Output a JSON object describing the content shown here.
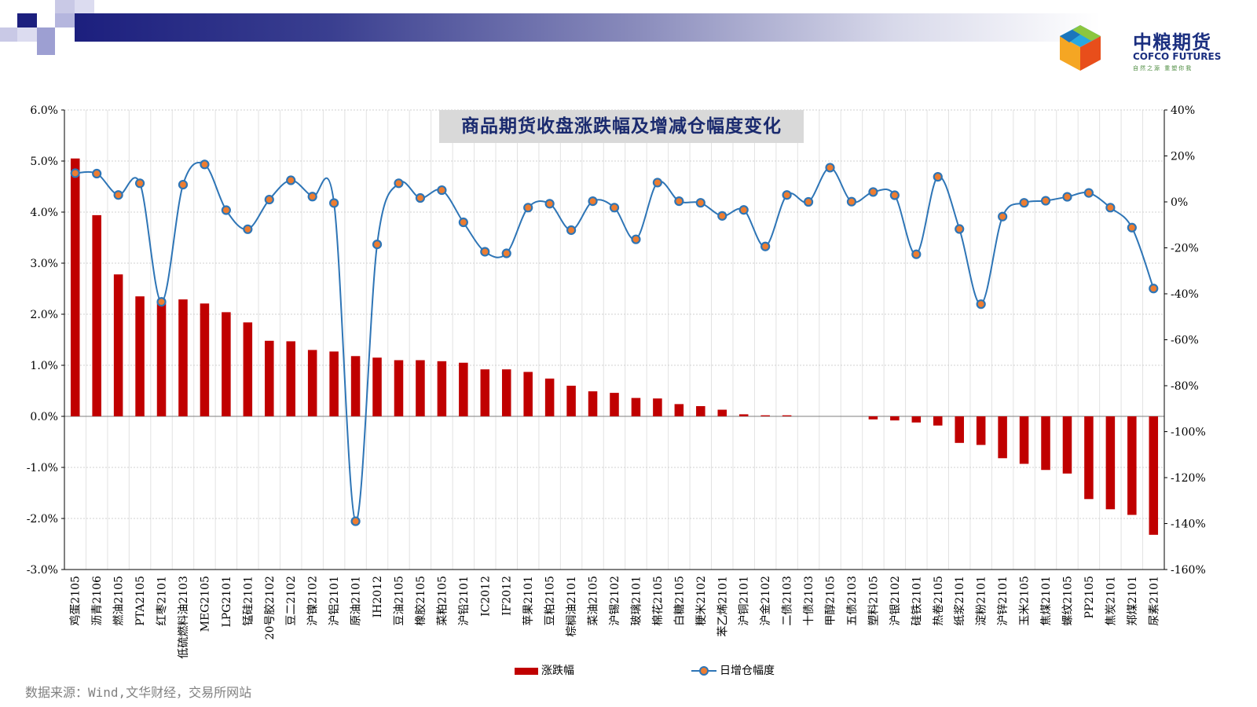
{
  "logo": {
    "name_cn": "中粮期货",
    "name_en": "COFCO FUTURES",
    "slogan": "自然之源 重塑你我"
  },
  "chart_title": "商品期货收盘涨跌幅及增减仓幅度变化",
  "source_text": "数据来源：Wind,文华财经，交易所网站",
  "colors": {
    "bar": "#c00000",
    "line": "#2e75b6",
    "marker_fill": "#ed7d31",
    "marker_edge": "#2e75b6",
    "header_dark": "#1c1f7e"
  },
  "chart_data": {
    "type": "bar",
    "categories": [
      "鸡蛋2105",
      "沥青2106",
      "燃油2105",
      "PTA2105",
      "红枣2101",
      "低硫燃料油2103",
      "MEG2105",
      "LPG2101",
      "锰硅2101",
      "20号胶2102",
      "豆二2102",
      "沪镍2102",
      "沪铝2101",
      "原油2101",
      "IH2012",
      "豆油2105",
      "橡胶2105",
      "菜粕2105",
      "沪铅2101",
      "IC2012",
      "IF2012",
      "苹果2101",
      "豆粕2105",
      "棕榈油2101",
      "菜油2105",
      "沪锡2102",
      "玻璃2101",
      "棉花2105",
      "白糖2105",
      "粳米2102",
      "苯乙烯2101",
      "沪铜2101",
      "沪金2102",
      "二债2103",
      "十债2103",
      "甲醇2105",
      "五债2103",
      "塑料2105",
      "沪银2102",
      "硅铁2101",
      "热卷2105",
      "纸浆2101",
      "淀粉2101",
      "沪锌2101",
      "玉米2105",
      "焦煤2101",
      "螺纹2105",
      "PP2105",
      "焦炭2101",
      "郑煤2101",
      "尿素2101"
    ],
    "series": [
      {
        "name": "涨跌幅",
        "type": "bar",
        "axis": "left",
        "values": [
          5.05,
          3.94,
          2.78,
          2.35,
          2.22,
          2.29,
          2.21,
          2.04,
          1.84,
          1.48,
          1.47,
          1.3,
          1.27,
          1.18,
          1.15,
          1.1,
          1.1,
          1.08,
          1.05,
          0.92,
          0.92,
          0.87,
          0.74,
          0.6,
          0.49,
          0.46,
          0.36,
          0.35,
          0.24,
          0.2,
          0.13,
          0.04,
          0.02,
          0.02,
          0.0,
          0.0,
          0.0,
          -0.06,
          -0.08,
          -0.12,
          -0.18,
          -0.52,
          -0.56,
          -0.82,
          -0.93,
          -1.05,
          -1.12,
          -1.62,
          -1.82,
          -1.93,
          -2.32
        ]
      },
      {
        "name": "日增仓幅度",
        "type": "line",
        "axis": "right",
        "values": [
          12.5,
          12.3,
          3.0,
          8.1,
          -43.5,
          7.5,
          16.3,
          -3.6,
          -11.9,
          1.0,
          9.4,
          2.3,
          -0.5,
          -139.0,
          -18.5,
          8.1,
          1.7,
          5.1,
          -8.9,
          -21.7,
          -22.4,
          -2.5,
          -0.8,
          -12.3,
          0.3,
          -2.5,
          -16.3,
          8.4,
          0.3,
          -0.4,
          -6.1,
          -3.5,
          -19.4,
          3.0,
          0.0,
          14.9,
          0.1,
          4.3,
          2.9,
          -22.8,
          10.9,
          -11.8,
          -44.5,
          -6.4,
          -0.4,
          0.5,
          2.2,
          3.9,
          -2.5,
          -11.2,
          -37.7
        ]
      }
    ],
    "y_left": {
      "min": -3.0,
      "max": 6.0,
      "ticks": [
        "6.0%",
        "5.0%",
        "4.0%",
        "3.0%",
        "2.0%",
        "1.0%",
        "0.0%",
        "-1.0%",
        "-2.0%",
        "-3.0%"
      ]
    },
    "y_right": {
      "min": -160,
      "max": 40,
      "ticks": [
        "40%",
        "20%",
        "0%",
        "-20%",
        "-40%",
        "-60%",
        "-80%",
        "-100%",
        "-120%",
        "-140%",
        "-160%"
      ]
    },
    "grid": true,
    "legend_position": "bottom"
  }
}
